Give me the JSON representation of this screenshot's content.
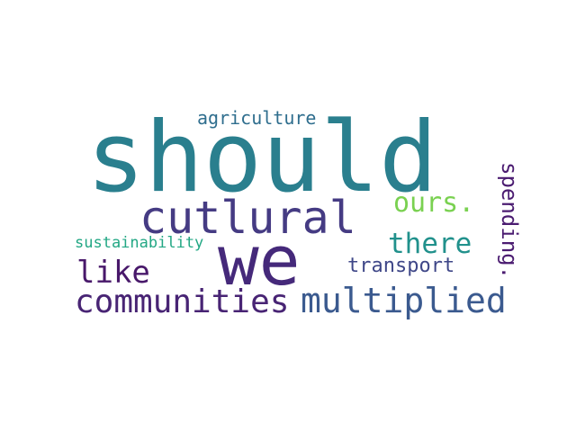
{
  "words": [
    {
      "key": "should",
      "text": "should",
      "color": "#2a7f8e"
    },
    {
      "key": "we",
      "text": "we",
      "color": "#45297a"
    },
    {
      "key": "cutlural",
      "text": "cutlural",
      "color": "#453b83"
    },
    {
      "key": "communities",
      "text": "communities",
      "color": "#482474"
    },
    {
      "key": "multiplied",
      "text": "multiplied",
      "color": "#3b5a8f"
    },
    {
      "key": "like",
      "text": "like",
      "color": "#48186a"
    },
    {
      "key": "there",
      "text": "there",
      "color": "#21918c"
    },
    {
      "key": "ours",
      "text": "ours.",
      "color": "#7ad151"
    },
    {
      "key": "transport",
      "text": "transport",
      "color": "#3f4788"
    },
    {
      "key": "spending",
      "text": "spending.",
      "color": "#4b1c71"
    },
    {
      "key": "agriculture",
      "text": "agriculture",
      "color": "#2f6e8e"
    },
    {
      "key": "sustainability",
      "text": "sustainability",
      "color": "#22a784"
    }
  ]
}
